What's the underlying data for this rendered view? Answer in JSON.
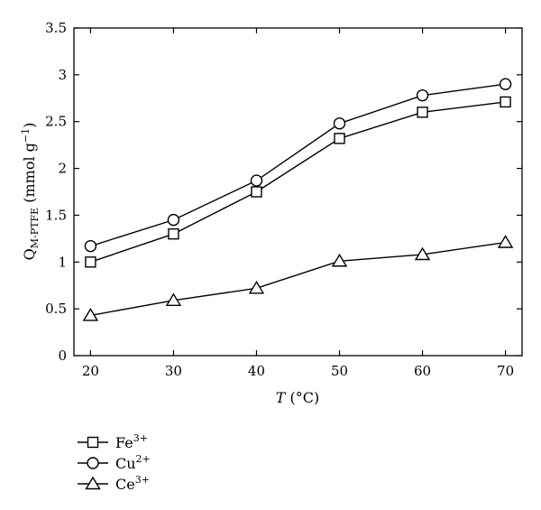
{
  "chart_data": {
    "type": "line",
    "x": [
      20,
      30,
      40,
      50,
      60,
      70
    ],
    "xlim": [
      18,
      72
    ],
    "ylim": [
      0,
      3.5
    ],
    "x_ticks": [
      "20",
      "30",
      "40",
      "50",
      "60",
      "70"
    ],
    "y_ticks": [
      "0",
      "0.5",
      "1",
      "1.5",
      "2",
      "2.5",
      "3",
      "3.5"
    ],
    "xlabel": {
      "main": "T",
      "rest": " (°C)"
    },
    "ylabel": {
      "main": "Q",
      "sub": "M-PTFE",
      "rest": " (mmol g",
      "sup": "−1",
      "close": ")"
    },
    "grid": false,
    "legend_position": "bottom-left",
    "series": [
      {
        "name": "Fe",
        "charge": "3+",
        "marker": "square",
        "values": [
          1.0,
          1.3,
          1.75,
          2.32,
          2.6,
          2.71
        ]
      },
      {
        "name": "Cu",
        "charge": "2+",
        "marker": "circle",
        "values": [
          1.17,
          1.45,
          1.87,
          2.48,
          2.78,
          2.9
        ]
      },
      {
        "name": "Ce",
        "charge": "3+",
        "marker": "triangle",
        "values": [
          0.43,
          0.59,
          0.72,
          1.01,
          1.08,
          1.21
        ]
      }
    ]
  }
}
